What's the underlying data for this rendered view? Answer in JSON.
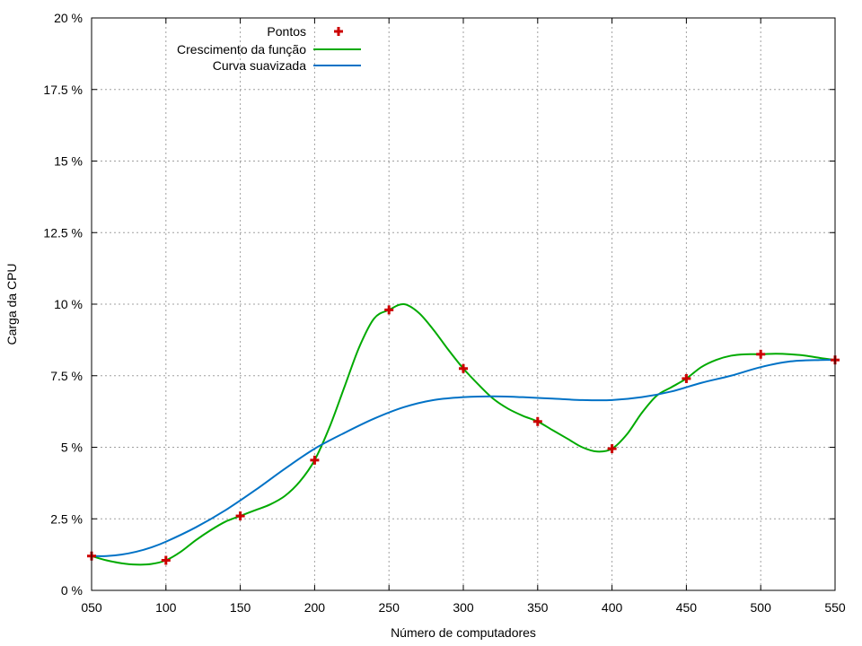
{
  "chart_data": {
    "type": "line",
    "xlabel": "Número de computadores",
    "ylabel": "Carga da CPU",
    "xlim": [
      50,
      550
    ],
    "ylim": [
      0,
      20
    ],
    "x_ticks": [
      50,
      100,
      150,
      200,
      250,
      300,
      350,
      400,
      450,
      500,
      550
    ],
    "x_tick_labels": [
      "050",
      "100",
      "150",
      "200",
      "250",
      "300",
      "350",
      "400",
      "450",
      "500",
      "550"
    ],
    "y_ticks": [
      0,
      2.5,
      5,
      7.5,
      10,
      12.5,
      15,
      17.5,
      20
    ],
    "y_tick_labels": [
      "0 %",
      "2.5 %",
      "5 %",
      "7.5 %",
      "10 %",
      "12.5 %",
      "15 %",
      "17.5 %",
      "20 %"
    ],
    "grid": true,
    "legend_position": "top-left",
    "series": [
      {
        "name": "Pontos",
        "style": "points",
        "marker": "plus",
        "color": "#cc0000",
        "x": [
          50,
          100,
          150,
          200,
          250,
          300,
          350,
          400,
          450,
          500,
          550
        ],
        "y": [
          1.2,
          1.05,
          2.6,
          4.55,
          9.8,
          7.75,
          5.9,
          4.95,
          7.4,
          8.25,
          8.05
        ]
      },
      {
        "name": "Crescimento da função",
        "style": "line",
        "color": "#00aa00",
        "x": [
          50,
          60,
          70,
          80,
          90,
          100,
          110,
          120,
          130,
          140,
          150,
          160,
          170,
          180,
          190,
          200,
          210,
          220,
          230,
          240,
          250,
          260,
          270,
          280,
          290,
          300,
          310,
          320,
          330,
          340,
          350,
          360,
          370,
          380,
          390,
          400,
          410,
          420,
          430,
          440,
          450,
          460,
          470,
          480,
          490,
          500,
          510,
          520,
          530,
          540,
          550
        ],
        "y": [
          1.2,
          1.05,
          0.95,
          0.9,
          0.92,
          1.05,
          1.35,
          1.75,
          2.1,
          2.4,
          2.6,
          2.8,
          3.0,
          3.3,
          3.8,
          4.55,
          5.7,
          7.1,
          8.5,
          9.5,
          9.8,
          10.0,
          9.7,
          9.1,
          8.4,
          7.75,
          7.2,
          6.7,
          6.35,
          6.1,
          5.9,
          5.6,
          5.3,
          5.0,
          4.85,
          4.95,
          5.45,
          6.2,
          6.8,
          7.1,
          7.4,
          7.8,
          8.05,
          8.2,
          8.25,
          8.25,
          8.27,
          8.25,
          8.2,
          8.12,
          8.05
        ]
      },
      {
        "name": "Curva suavizada",
        "style": "line",
        "color": "#0072c6",
        "x": [
          50,
          60,
          70,
          80,
          90,
          100,
          120,
          140,
          160,
          180,
          200,
          220,
          240,
          260,
          280,
          300,
          320,
          340,
          360,
          380,
          400,
          420,
          440,
          460,
          480,
          500,
          520,
          540,
          550
        ],
        "y": [
          1.2,
          1.2,
          1.25,
          1.35,
          1.5,
          1.7,
          2.2,
          2.8,
          3.5,
          4.25,
          4.95,
          5.5,
          6.0,
          6.4,
          6.65,
          6.75,
          6.78,
          6.75,
          6.7,
          6.65,
          6.65,
          6.75,
          6.95,
          7.25,
          7.5,
          7.8,
          8.0,
          8.05,
          8.05
        ]
      }
    ]
  }
}
